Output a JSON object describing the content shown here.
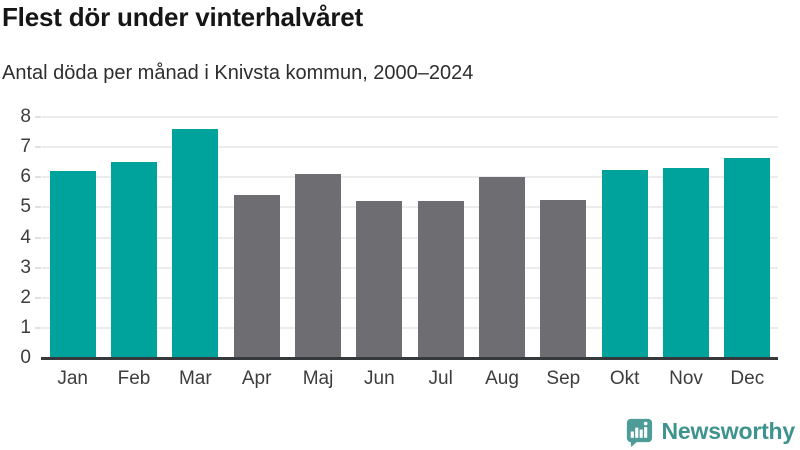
{
  "header": {
    "title": "Flest dör under vinterhalvåret",
    "subtitle": "Antal döda per månad i Knivsta kommun, 2000–2024"
  },
  "footer": {
    "brand": "Newsworthy",
    "logo_icon": "newsworthy-speech-bubble-bar-chart-icon"
  },
  "colors": {
    "winter_bar": "#00a39b",
    "summer_bar": "#6d6d72",
    "logo_teal": "#4d9c97",
    "brand_text": "#3e938e",
    "gridline": "#ececec",
    "axis_line": "#36393c",
    "axis_label": "#3d3d3d",
    "title_text": "#161616"
  },
  "chart_data": {
    "type": "bar",
    "title": "Flest dör under vinterhalvåret",
    "subtitle": "Antal döda per månad i Knivsta kommun, 2000–2024",
    "categories": [
      "Jan",
      "Feb",
      "Mar",
      "Apr",
      "Maj",
      "Jun",
      "Jul",
      "Aug",
      "Sep",
      "Okt",
      "Nov",
      "Dec"
    ],
    "values": [
      6.2,
      6.5,
      7.6,
      5.4,
      6.1,
      5.2,
      5.2,
      6.0,
      5.25,
      6.25,
      6.3,
      6.65
    ],
    "bar_groups": [
      "winter",
      "winter",
      "winter",
      "summer",
      "summer",
      "summer",
      "summer",
      "summer",
      "summer",
      "winter",
      "winter",
      "winter"
    ],
    "group_colors": {
      "winter": "#00a39b",
      "summer": "#6d6d72"
    },
    "xlabel": "",
    "ylabel": "",
    "ylim": [
      0,
      8
    ],
    "yticks": [
      0,
      1,
      2,
      3,
      4,
      5,
      6,
      7,
      8
    ],
    "grid": "horizontal",
    "legend": "none"
  }
}
